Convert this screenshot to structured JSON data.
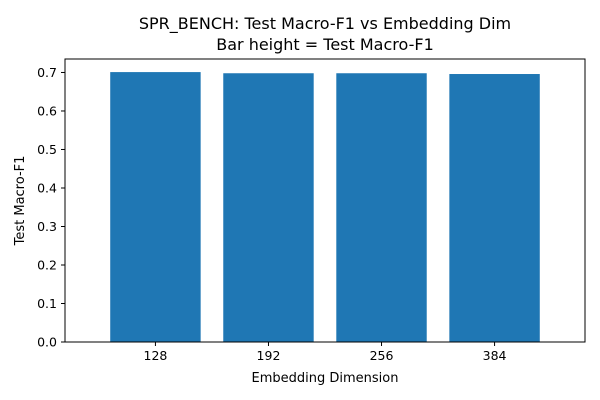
{
  "chart_data": {
    "type": "bar",
    "title": "SPR_BENCH: Test Macro-F1 vs Embedding Dim",
    "subtitle": "Bar height = Test Macro-F1",
    "xlabel": "Embedding Dimension",
    "ylabel": "Test Macro-F1",
    "categories": [
      "128",
      "192",
      "256",
      "384"
    ],
    "values": [
      0.701,
      0.698,
      0.698,
      0.696
    ],
    "ylim": [
      0,
      0.735
    ],
    "yticks": [
      0.0,
      0.1,
      0.2,
      0.3,
      0.4,
      0.5,
      0.6,
      0.7
    ],
    "ytick_labels": [
      "0.0",
      "0.1",
      "0.2",
      "0.3",
      "0.4",
      "0.5",
      "0.6",
      "0.7"
    ],
    "bar_color": "#1f77b4",
    "grid": false,
    "legend": "none"
  }
}
